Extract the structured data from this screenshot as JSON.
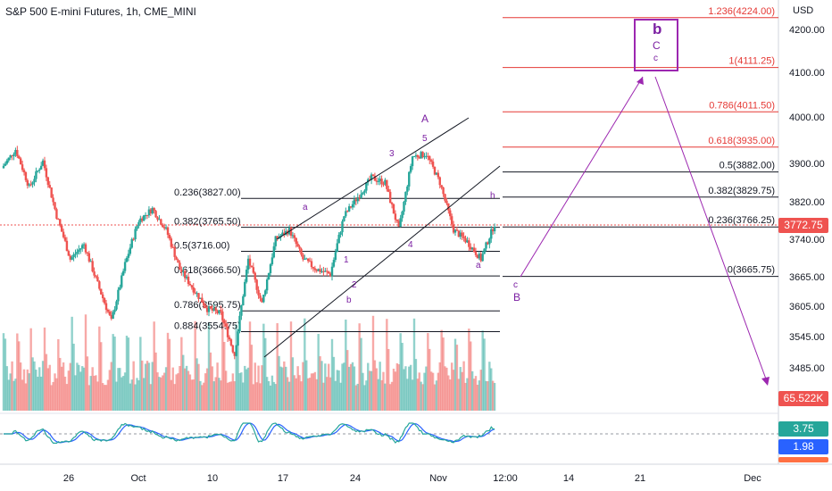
{
  "header": {
    "title": "S&P 500 E-mini Futures, 1h, CME_MINI",
    "currency": "USD"
  },
  "colors": {
    "up": "#26a69a",
    "down": "#ef5350",
    "wave": "#9c27b0",
    "fib_red": "#e53935",
    "badge_price": "#ef5350",
    "badge_green": "#26a69a",
    "badge_blue": "#2962ff"
  },
  "price_axis": {
    "ticks": [
      "4200.00",
      "4100.00",
      "4000.00",
      "3900.00",
      "3820.00",
      "3740.00",
      "3665.00",
      "3605.00",
      "3545.00",
      "3485.00"
    ]
  },
  "time_axis": {
    "ticks": [
      "26",
      "Oct",
      "10",
      "17",
      "24",
      "Nov",
      "12:00",
      "14",
      "21",
      "Dec"
    ]
  },
  "badges": {
    "last_price": "3772.75",
    "volume": "65.522K",
    "osc_a": "3.75",
    "osc_b": "1.98"
  },
  "chart_data": {
    "type": "candlestick",
    "title": "S&P 500 E-mini Futures, 1h, CME_MINI",
    "y_unit": "USD",
    "ylim": [
      3440,
      4260
    ],
    "x_ticks": [
      "26",
      "Oct",
      "10",
      "17",
      "24",
      "Nov",
      "12:00",
      "14",
      "21",
      "Dec"
    ],
    "price_path": [
      {
        "t": "Sep 20",
        "price": 3890
      },
      {
        "t": "Sep 21",
        "price": 3930
      },
      {
        "t": "Sep 22",
        "price": 3850
      },
      {
        "t": "Sep 23",
        "price": 3905
      },
      {
        "t": "Sep 26",
        "price": 3790
      },
      {
        "t": "Sep 27",
        "price": 3700
      },
      {
        "t": "Sep 28",
        "price": 3730
      },
      {
        "t": "Sep 29",
        "price": 3650
      },
      {
        "t": "Sep 30",
        "price": 3575
      },
      {
        "t": "Oct 3",
        "price": 3690
      },
      {
        "t": "Oct 4",
        "price": 3780
      },
      {
        "t": "Oct 5",
        "price": 3805
      },
      {
        "t": "Oct 6",
        "price": 3760
      },
      {
        "t": "Oct 7",
        "price": 3680
      },
      {
        "t": "Oct 10",
        "price": 3640
      },
      {
        "t": "Oct 11",
        "price": 3600
      },
      {
        "t": "Oct 12",
        "price": 3590
      },
      {
        "t": "Oct 13",
        "price": 3510
      },
      {
        "t": "Oct 14",
        "price": 3700
      },
      {
        "t": "Oct 17",
        "price": 3610
      },
      {
        "t": "Oct 18",
        "price": 3740
      },
      {
        "t": "Oct 19",
        "price": 3760
      },
      {
        "t": "Oct 20",
        "price": 3700
      },
      {
        "t": "Oct 21",
        "price": 3680
      },
      {
        "t": "Oct 24",
        "price": 3670
      },
      {
        "t": "Oct 25",
        "price": 3790
      },
      {
        "t": "Oct 26",
        "price": 3830
      },
      {
        "t": "Oct 27",
        "price": 3870
      },
      {
        "t": "Oct 28",
        "price": 3860
      },
      {
        "t": "Oct 31",
        "price": 3760
      },
      {
        "t": "Nov 1",
        "price": 3915
      },
      {
        "t": "Nov 2",
        "price": 3920
      },
      {
        "t": "Nov 3",
        "price": 3860
      },
      {
        "t": "Nov 4",
        "price": 3760
      },
      {
        "t": "Nov 7",
        "price": 3735
      },
      {
        "t": "Nov 8",
        "price": 3700
      },
      {
        "t": "Nov 9",
        "price": 3772.75
      }
    ],
    "last_price": 3772.75,
    "fib_retracement_left": [
      {
        "label": "0.236(3827.00)",
        "price": 3827.0
      },
      {
        "label": "0.382(3765.50)",
        "price": 3765.5
      },
      {
        "label": "0.5(3716.00)",
        "price": 3716.0
      },
      {
        "label": "0.618(3666.50)",
        "price": 3666.5
      },
      {
        "label": "0.786(3595.75)",
        "price": 3595.75
      },
      {
        "label": "0.884(3554.75)",
        "price": 3554.75
      }
    ],
    "fib_extension_right": [
      {
        "label": "1.236(4224.00)",
        "price": 4224.0,
        "color": "red"
      },
      {
        "label": "1(4111.25)",
        "price": 4111.25,
        "color": "red"
      },
      {
        "label": "0.786(4011.50)",
        "price": 4011.5,
        "color": "red"
      },
      {
        "label": "0.618(3935.00)",
        "price": 3935.0,
        "color": "red"
      },
      {
        "label": "0.5(3882.00)",
        "price": 3882.0,
        "color": "black"
      },
      {
        "label": "0.382(3829.75)",
        "price": 3829.75,
        "color": "black"
      },
      {
        "label": "0.236(3766.25)",
        "price": 3766.25,
        "color": "black"
      },
      {
        "label": "0(3665.75)",
        "price": 3665.75,
        "color": "black"
      }
    ],
    "wave_labels": [
      "A",
      "5",
      "3",
      "a",
      "1",
      "2",
      "b",
      "4",
      "h",
      "a",
      "c",
      "B",
      "b",
      "C",
      "c"
    ],
    "volume_last": "65.522K",
    "oscillator_values": [
      "3.75",
      "1.98"
    ]
  }
}
